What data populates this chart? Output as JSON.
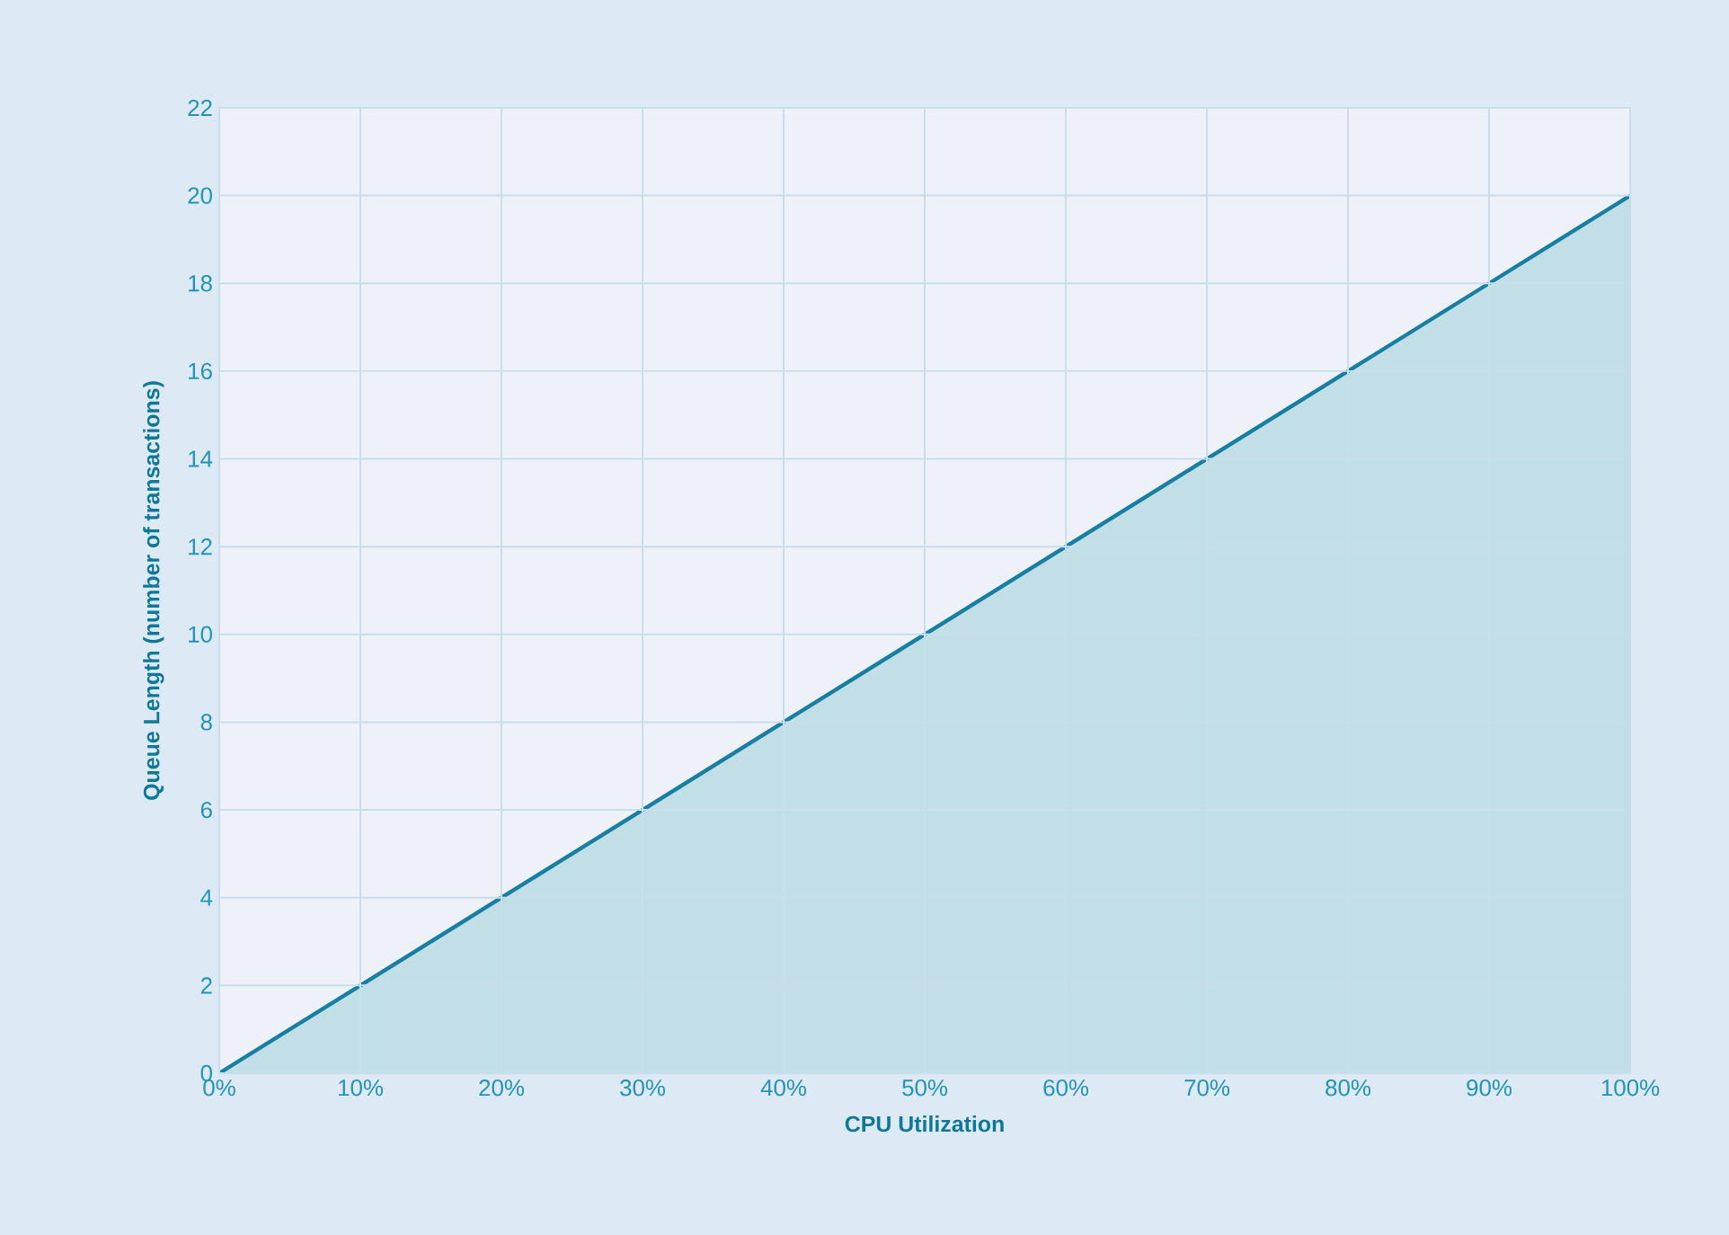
{
  "chart_data": {
    "type": "area",
    "xlabel": "CPU Utilization",
    "ylabel": "Queue Length (number of transactions)",
    "x": [
      0,
      10,
      20,
      30,
      40,
      50,
      60,
      70,
      80,
      90,
      100
    ],
    "series": [
      {
        "color": "#167fa3",
        "values": [
          0,
          2,
          4,
          6,
          8,
          10,
          12,
          14,
          16,
          18,
          20
        ]
      }
    ],
    "xlim": [
      0,
      100
    ],
    "ylim": [
      0,
      22
    ],
    "xticks": [
      {
        "value": 0,
        "label": "0%"
      },
      {
        "value": 10,
        "label": "10%"
      },
      {
        "value": 20,
        "label": "20%"
      },
      {
        "value": 30,
        "label": "30%"
      },
      {
        "value": 40,
        "label": "40%"
      },
      {
        "value": 50,
        "label": "50%"
      },
      {
        "value": 60,
        "label": "60%"
      },
      {
        "value": 70,
        "label": "70%"
      },
      {
        "value": 80,
        "label": "80%"
      },
      {
        "value": 90,
        "label": "90%"
      },
      {
        "value": 100,
        "label": "100%"
      }
    ],
    "yticks": [
      0,
      2,
      4,
      6,
      8,
      10,
      12,
      14,
      16,
      18,
      20,
      22
    ],
    "grid": true
  }
}
